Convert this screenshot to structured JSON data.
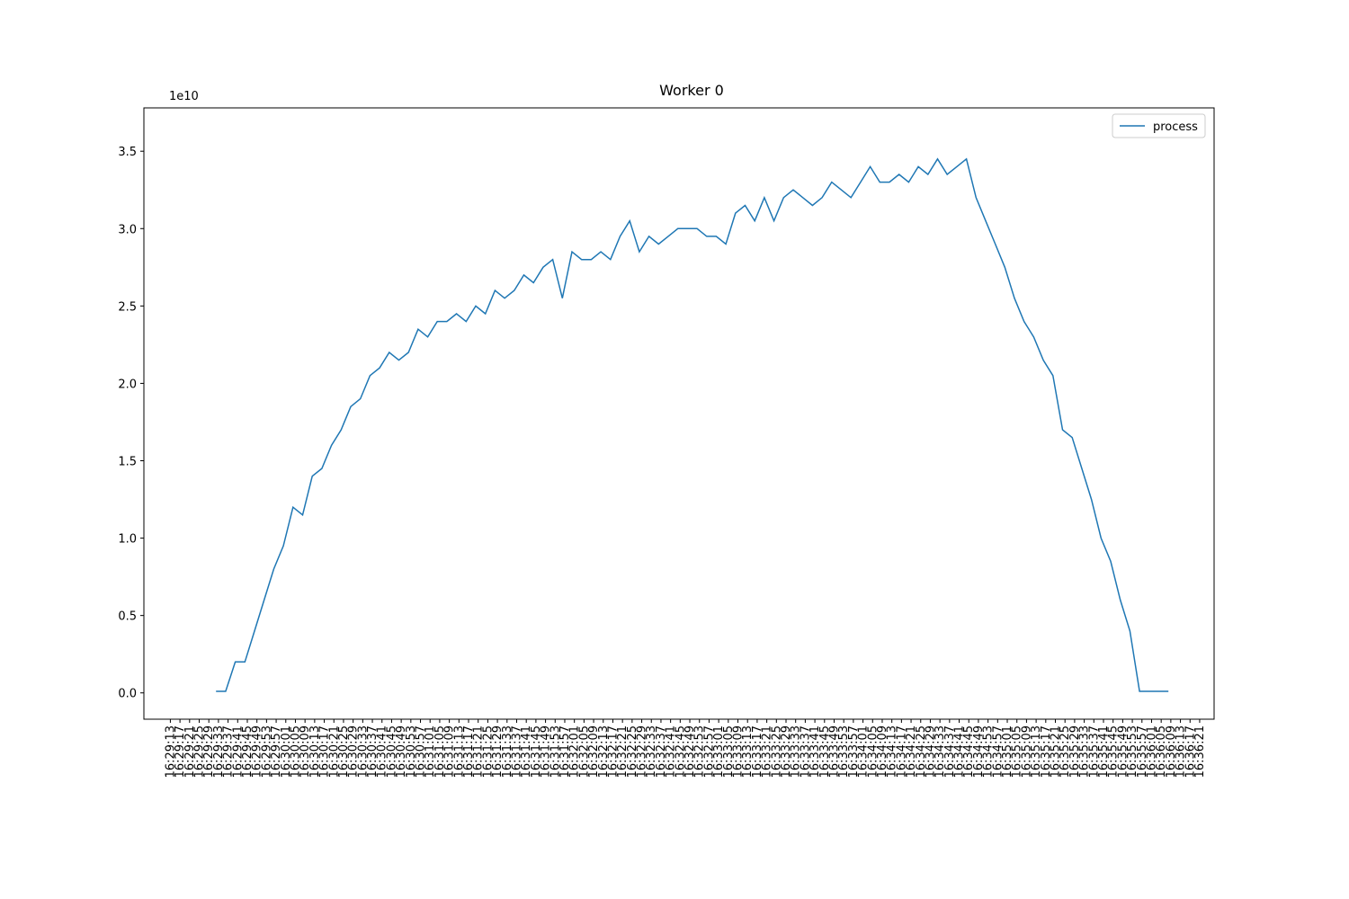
{
  "chart_data": {
    "type": "line",
    "title": "Worker 0",
    "y_offset_label": "1e10",
    "x": [
      "16:29:32",
      "16:29:36",
      "16:29:40",
      "16:29:44",
      "16:29:48",
      "16:29:52",
      "16:29:56",
      "16:30:00",
      "16:30:04",
      "16:30:08",
      "16:30:12",
      "16:30:16",
      "16:30:20",
      "16:30:24",
      "16:30:28",
      "16:30:32",
      "16:30:36",
      "16:30:40",
      "16:30:44",
      "16:30:48",
      "16:30:52",
      "16:30:56",
      "16:31:00",
      "16:31:04",
      "16:31:08",
      "16:31:12",
      "16:31:16",
      "16:31:20",
      "16:31:24",
      "16:31:28",
      "16:31:32",
      "16:31:36",
      "16:31:40",
      "16:31:44",
      "16:31:48",
      "16:31:52",
      "16:31:56",
      "16:32:00",
      "16:32:04",
      "16:32:08",
      "16:32:12",
      "16:32:16",
      "16:32:20",
      "16:32:24",
      "16:32:28",
      "16:32:32",
      "16:32:36",
      "16:32:40",
      "16:32:44",
      "16:32:48",
      "16:32:52",
      "16:32:56",
      "16:33:00",
      "16:33:04",
      "16:33:08",
      "16:33:12",
      "16:33:16",
      "16:33:20",
      "16:33:24",
      "16:33:28",
      "16:33:32",
      "16:33:36",
      "16:33:40",
      "16:33:44",
      "16:33:48",
      "16:33:52",
      "16:33:56",
      "16:34:00",
      "16:34:04",
      "16:34:08",
      "16:34:12",
      "16:34:16",
      "16:34:20",
      "16:34:24",
      "16:34:28",
      "16:34:32",
      "16:34:36",
      "16:34:40",
      "16:34:44",
      "16:34:48",
      "16:34:52",
      "16:34:56",
      "16:35:00",
      "16:35:04",
      "16:35:08",
      "16:35:12",
      "16:35:16",
      "16:35:20",
      "16:35:24",
      "16:35:28",
      "16:35:32",
      "16:35:36",
      "16:35:40",
      "16:35:44",
      "16:35:48",
      "16:35:52",
      "16:35:56",
      "16:36:00",
      "16:36:04",
      "16:36:08"
    ],
    "series": [
      {
        "name": "process",
        "color": "#1f77b4",
        "values": [
          0.01,
          0.01,
          0.2,
          0.2,
          0.4,
          0.6,
          0.8,
          0.95,
          1.2,
          1.15,
          1.4,
          1.45,
          1.6,
          1.7,
          1.85,
          1.9,
          2.05,
          2.1,
          2.2,
          2.15,
          2.2,
          2.35,
          2.3,
          2.4,
          2.4,
          2.45,
          2.4,
          2.5,
          2.45,
          2.6,
          2.55,
          2.6,
          2.7,
          2.65,
          2.75,
          2.8,
          2.55,
          2.85,
          2.8,
          2.8,
          2.85,
          2.8,
          2.95,
          3.05,
          2.85,
          2.95,
          2.9,
          2.95,
          3.0,
          3.0,
          3.0,
          2.95,
          2.95,
          2.9,
          3.1,
          3.15,
          3.05,
          3.2,
          3.05,
          3.2,
          3.25,
          3.2,
          3.15,
          3.2,
          3.3,
          3.25,
          3.2,
          3.3,
          3.4,
          3.3,
          3.3,
          3.35,
          3.3,
          3.4,
          3.35,
          3.45,
          3.35,
          3.4,
          3.45,
          3.2,
          3.05,
          2.9,
          2.75,
          2.55,
          2.4,
          2.3,
          2.15,
          2.05,
          1.7,
          1.65,
          1.45,
          1.25,
          1.0,
          0.85,
          0.6,
          0.4,
          0.01,
          0.01,
          0.01,
          0.01
        ]
      }
    ],
    "xlim": [
      "16:29:02",
      "16:36:27"
    ],
    "xticks": [
      "16:29:13",
      "16:29:17",
      "16:29:21",
      "16:29:25",
      "16:29:29",
      "16:29:33",
      "16:29:37",
      "16:29:41",
      "16:29:45",
      "16:29:49",
      "16:29:53",
      "16:29:57",
      "16:30:01",
      "16:30:05",
      "16:30:09",
      "16:30:13",
      "16:30:17",
      "16:30:21",
      "16:30:25",
      "16:30:29",
      "16:30:33",
      "16:30:37",
      "16:30:41",
      "16:30:45",
      "16:30:49",
      "16:30:53",
      "16:30:57",
      "16:31:01",
      "16:31:05",
      "16:31:09",
      "16:31:13",
      "16:31:17",
      "16:31:21",
      "16:31:25",
      "16:31:29",
      "16:31:33",
      "16:31:37",
      "16:31:41",
      "16:31:45",
      "16:31:49",
      "16:31:53",
      "16:31:57",
      "16:32:01",
      "16:32:05",
      "16:32:09",
      "16:32:13",
      "16:32:17",
      "16:32:21",
      "16:32:25",
      "16:32:29",
      "16:32:33",
      "16:32:37",
      "16:32:41",
      "16:32:45",
      "16:32:49",
      "16:32:53",
      "16:32:57",
      "16:33:01",
      "16:33:05",
      "16:33:09",
      "16:33:13",
      "16:33:17",
      "16:33:21",
      "16:33:25",
      "16:33:29",
      "16:33:33",
      "16:33:37",
      "16:33:41",
      "16:33:45",
      "16:33:49",
      "16:33:53",
      "16:33:57",
      "16:34:01",
      "16:34:05",
      "16:34:09",
      "16:34:13",
      "16:34:17",
      "16:34:21",
      "16:34:25",
      "16:34:29",
      "16:34:33",
      "16:34:37",
      "16:34:41",
      "16:34:45",
      "16:34:49",
      "16:34:53",
      "16:34:57",
      "16:35:01",
      "16:35:05",
      "16:35:09",
      "16:35:13",
      "16:35:17",
      "16:35:21",
      "16:35:25",
      "16:35:29",
      "16:35:33",
      "16:35:37",
      "16:35:41",
      "16:35:45",
      "16:35:49",
      "16:35:53",
      "16:35:57",
      "16:36:01",
      "16:36:05",
      "16:36:09",
      "16:36:13",
      "16:36:17",
      "16:36:21"
    ],
    "ylim": [
      -0.17,
      3.78
    ],
    "yticks": [
      {
        "value": 0,
        "label": "0.0"
      },
      0.5,
      {
        "value": 1,
        "label": "1.0"
      },
      1.5,
      {
        "value": 2,
        "label": "2.0"
      },
      2.5,
      {
        "value": 3,
        "label": "3.0"
      },
      3.5
    ],
    "grid": false,
    "legend": "upper right"
  }
}
